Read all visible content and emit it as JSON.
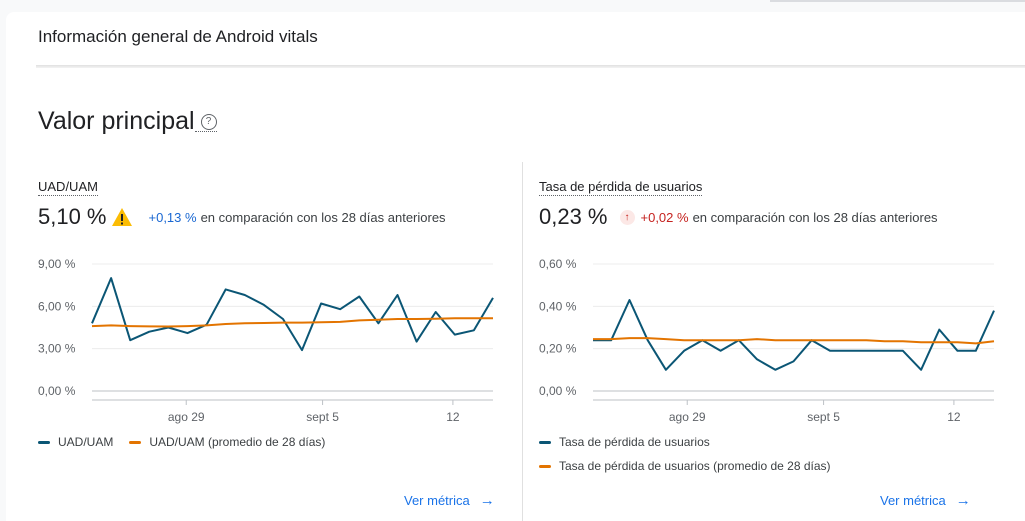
{
  "header": {
    "title": "Información general de Android vitals"
  },
  "section": {
    "title": "Valor principal",
    "help_glyph": "?"
  },
  "metrics": [
    {
      "name": "UAD/UAM",
      "value": "5,10 %",
      "delta": "+0,13 %",
      "compare": "en comparación con los 28 días anteriores",
      "status_icon": "warning-icon",
      "view_link": "Ver métrica",
      "legend": [
        "UAD/UAM",
        "UAD/UAM (promedio de 28 días)"
      ],
      "chart_data": {
        "type": "line",
        "y_ticks": [
          "9,00 %",
          "6,00 %",
          "3,00 %",
          "0,00 %"
        ],
        "x_ticks": [
          "ago 29",
          "sept 5",
          "12"
        ],
        "ylim": [
          0,
          9
        ],
        "series": [
          {
            "name": "UAD/UAM",
            "color": "#0b5675",
            "values": [
              4.8,
              8.0,
              3.6,
              4.2,
              4.5,
              4.1,
              4.7,
              7.2,
              6.8,
              6.1,
              5.1,
              2.9,
              6.2,
              5.8,
              6.7,
              4.8,
              6.8,
              3.5,
              5.6,
              4.0,
              4.3,
              6.6
            ]
          },
          {
            "name": "UAD/UAM (promedio de 28 días)",
            "color": "#e37400",
            "values": [
              4.6,
              4.65,
              4.6,
              4.58,
              4.57,
              4.6,
              4.65,
              4.75,
              4.8,
              4.82,
              4.85,
              4.85,
              4.87,
              4.9,
              5.0,
              5.05,
              5.1,
              5.1,
              5.12,
              5.15,
              5.15,
              5.15
            ]
          }
        ]
      }
    },
    {
      "name": "Tasa de pérdida de usuarios",
      "value": "0,23 %",
      "delta": "+0,02 %",
      "compare": "en comparación con los 28 días anteriores",
      "status_icon": "arrow-up-icon",
      "view_link": "Ver métrica",
      "legend": [
        "Tasa de pérdida de usuarios",
        "Tasa de pérdida de usuarios (promedio de 28 días)"
      ],
      "chart_data": {
        "type": "line",
        "y_ticks": [
          "0,60 %",
          "0,40 %",
          "0,20 %",
          "0,00 %"
        ],
        "x_ticks": [
          "ago 29",
          "sept 5",
          "12"
        ],
        "ylim": [
          0,
          0.6
        ],
        "series": [
          {
            "name": "Tasa de pérdida de usuarios",
            "color": "#0b5675",
            "values": [
              0.24,
              0.24,
              0.43,
              0.24,
              0.1,
              0.19,
              0.24,
              0.19,
              0.24,
              0.15,
              0.1,
              0.14,
              0.24,
              0.19,
              0.19,
              0.19,
              0.19,
              0.19,
              0.1,
              0.29,
              0.19,
              0.19,
              0.38
            ]
          },
          {
            "name": "Tasa de pérdida de usuarios (promedio de 28 días)",
            "color": "#e37400",
            "values": [
              0.245,
              0.245,
              0.25,
              0.25,
              0.245,
              0.24,
              0.24,
              0.24,
              0.24,
              0.245,
              0.24,
              0.24,
              0.24,
              0.24,
              0.24,
              0.24,
              0.235,
              0.235,
              0.23,
              0.23,
              0.23,
              0.225,
              0.235
            ]
          }
        ]
      }
    }
  ],
  "colors": {
    "accent": "#1a73e8",
    "line": "#0b5675",
    "avg": "#e37400",
    "warning": "#fbbc04"
  }
}
